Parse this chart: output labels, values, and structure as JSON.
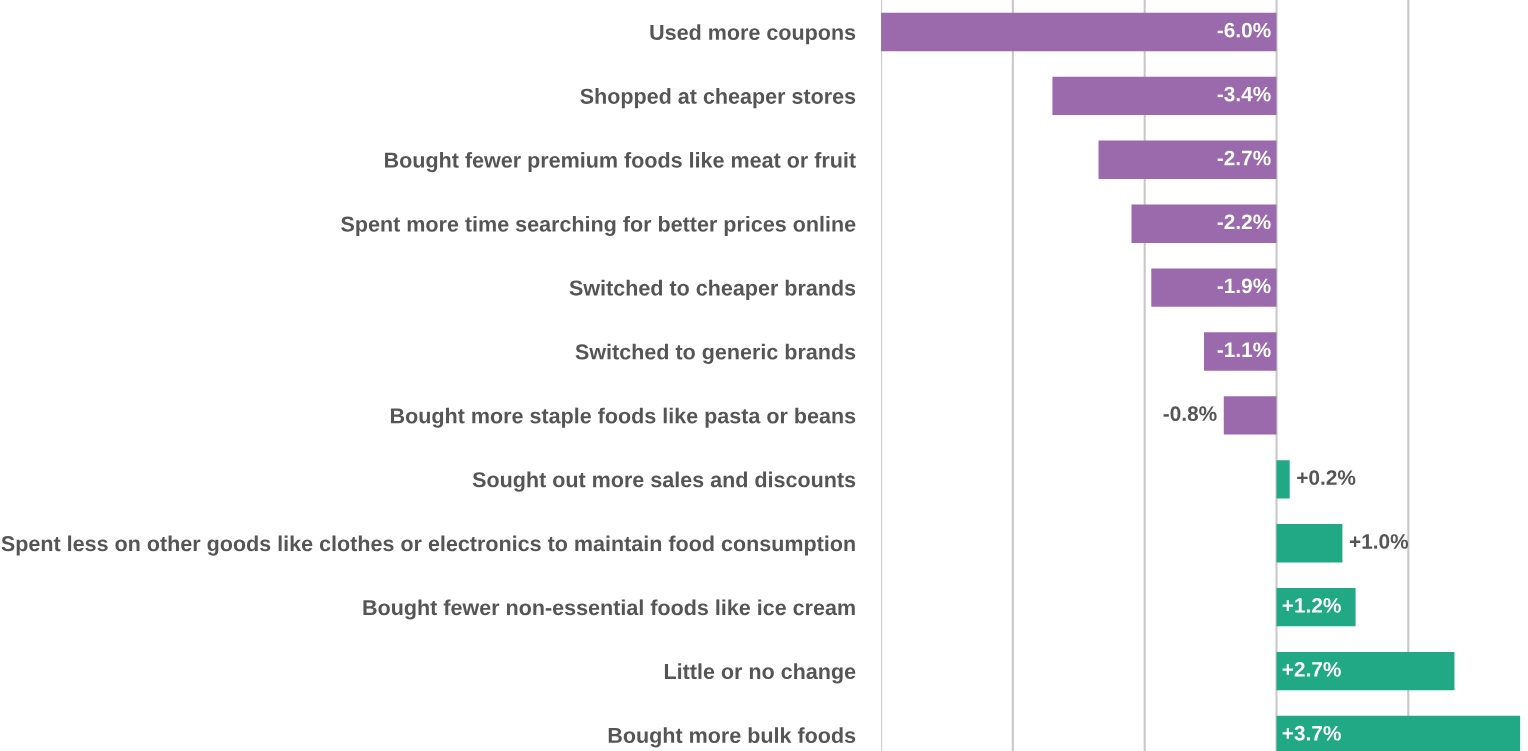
{
  "chart_data": {
    "type": "bar",
    "orientation": "horizontal",
    "categories": [
      "Used more coupons",
      "Shopped at cheaper stores",
      "Bought fewer premium foods like meat or fruit",
      "Spent more time searching for better prices online",
      "Switched to cheaper brands",
      "Switched to generic brands",
      "Bought more staple foods like pasta or beans",
      "Sought out more sales and discounts",
      "Spent less on other goods like clothes or electronics to maintain food consumption",
      "Bought fewer non-essential foods like ice cream",
      "Little or no change",
      "Bought more bulk foods"
    ],
    "values": [
      -6.0,
      -3.4,
      -2.7,
      -2.2,
      -1.9,
      -1.1,
      -0.8,
      0.2,
      1.0,
      1.2,
      2.7,
      3.7
    ],
    "colors": [
      "#9b6aad",
      "#9b6aad",
      "#9b6aad",
      "#9b6aad",
      "#9b6aad",
      "#9b6aad",
      "#9b6aad",
      "#21a884",
      "#21a884",
      "#21a884",
      "#21a884",
      "#21a884"
    ],
    "value_labels": [
      "-6.0%",
      "-3.4%",
      "-2.7%",
      "-2.2%",
      "-1.9%",
      "-1.1%",
      "-0.8%",
      "+0.2%",
      "+1.0%",
      "+1.2%",
      "+2.7%",
      "+3.7%"
    ],
    "xlim": [
      -6,
      3.7
    ],
    "xticks": [
      {
        "value": -6,
        "label": null
      },
      {
        "value": -4,
        "label": null
      },
      {
        "value": -2,
        "label": null
      },
      {
        "value": 0,
        "label": null
      },
      {
        "value": 2,
        "label": null
      }
    ],
    "grid": "x",
    "tick_labels": "y"
  }
}
